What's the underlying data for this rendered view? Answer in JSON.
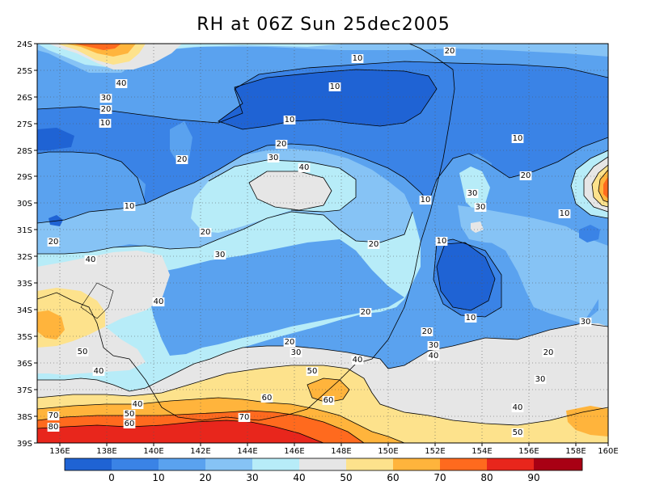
{
  "title": "RH at 06Z Sun 25dec2005",
  "map": {
    "lon_labels": [
      "136E",
      "138E",
      "140E",
      "142E",
      "144E",
      "146E",
      "148E",
      "150E",
      "152E",
      "154E",
      "156E",
      "158E",
      "160E"
    ],
    "lat_labels": [
      "24S",
      "25S",
      "26S",
      "27S",
      "28S",
      "29S",
      "30S",
      "31S",
      "32S",
      "33S",
      "34S",
      "35S",
      "36S",
      "37S",
      "38S",
      "39S"
    ]
  },
  "colorbar": {
    "labels": [
      "0",
      "10",
      "20",
      "30",
      "40",
      "50",
      "60",
      "70",
      "80",
      "90"
    ],
    "colors": [
      "#1f63d4",
      "#3a83e6",
      "#5aa2ef",
      "#86c3f5",
      "#b7ecf8",
      "#e6e6e6",
      "#fde28c",
      "#ffb43c",
      "#ff6a1e",
      "#e8261c",
      "#a80014"
    ]
  },
  "contour_labels": [
    {
      "text": "10"
    },
    {
      "text": "10"
    },
    {
      "text": "10"
    },
    {
      "text": "10"
    },
    {
      "text": "10"
    },
    {
      "text": "10"
    },
    {
      "text": "10"
    },
    {
      "text": "10"
    },
    {
      "text": "10"
    },
    {
      "text": "10"
    },
    {
      "text": "20"
    },
    {
      "text": "20"
    },
    {
      "text": "20"
    },
    {
      "text": "20"
    },
    {
      "text": "20"
    },
    {
      "text": "20"
    },
    {
      "text": "20"
    },
    {
      "text": "20"
    },
    {
      "text": "20"
    },
    {
      "text": "20"
    },
    {
      "text": "20"
    },
    {
      "text": "20"
    },
    {
      "text": "30"
    },
    {
      "text": "30"
    },
    {
      "text": "30"
    },
    {
      "text": "30"
    },
    {
      "text": "30"
    },
    {
      "text": "30"
    },
    {
      "text": "30"
    },
    {
      "text": "30"
    },
    {
      "text": "30"
    },
    {
      "text": "40"
    },
    {
      "text": "40"
    },
    {
      "text": "40"
    },
    {
      "text": "40"
    },
    {
      "text": "40"
    },
    {
      "text": "40"
    },
    {
      "text": "40"
    },
    {
      "text": "40"
    },
    {
      "text": "40"
    },
    {
      "text": "50"
    },
    {
      "text": "50"
    },
    {
      "text": "50"
    },
    {
      "text": "50"
    },
    {
      "text": "60"
    },
    {
      "text": "60"
    },
    {
      "text": "60"
    },
    {
      "text": "70"
    },
    {
      "text": "70"
    },
    {
      "text": "80"
    }
  ]
}
